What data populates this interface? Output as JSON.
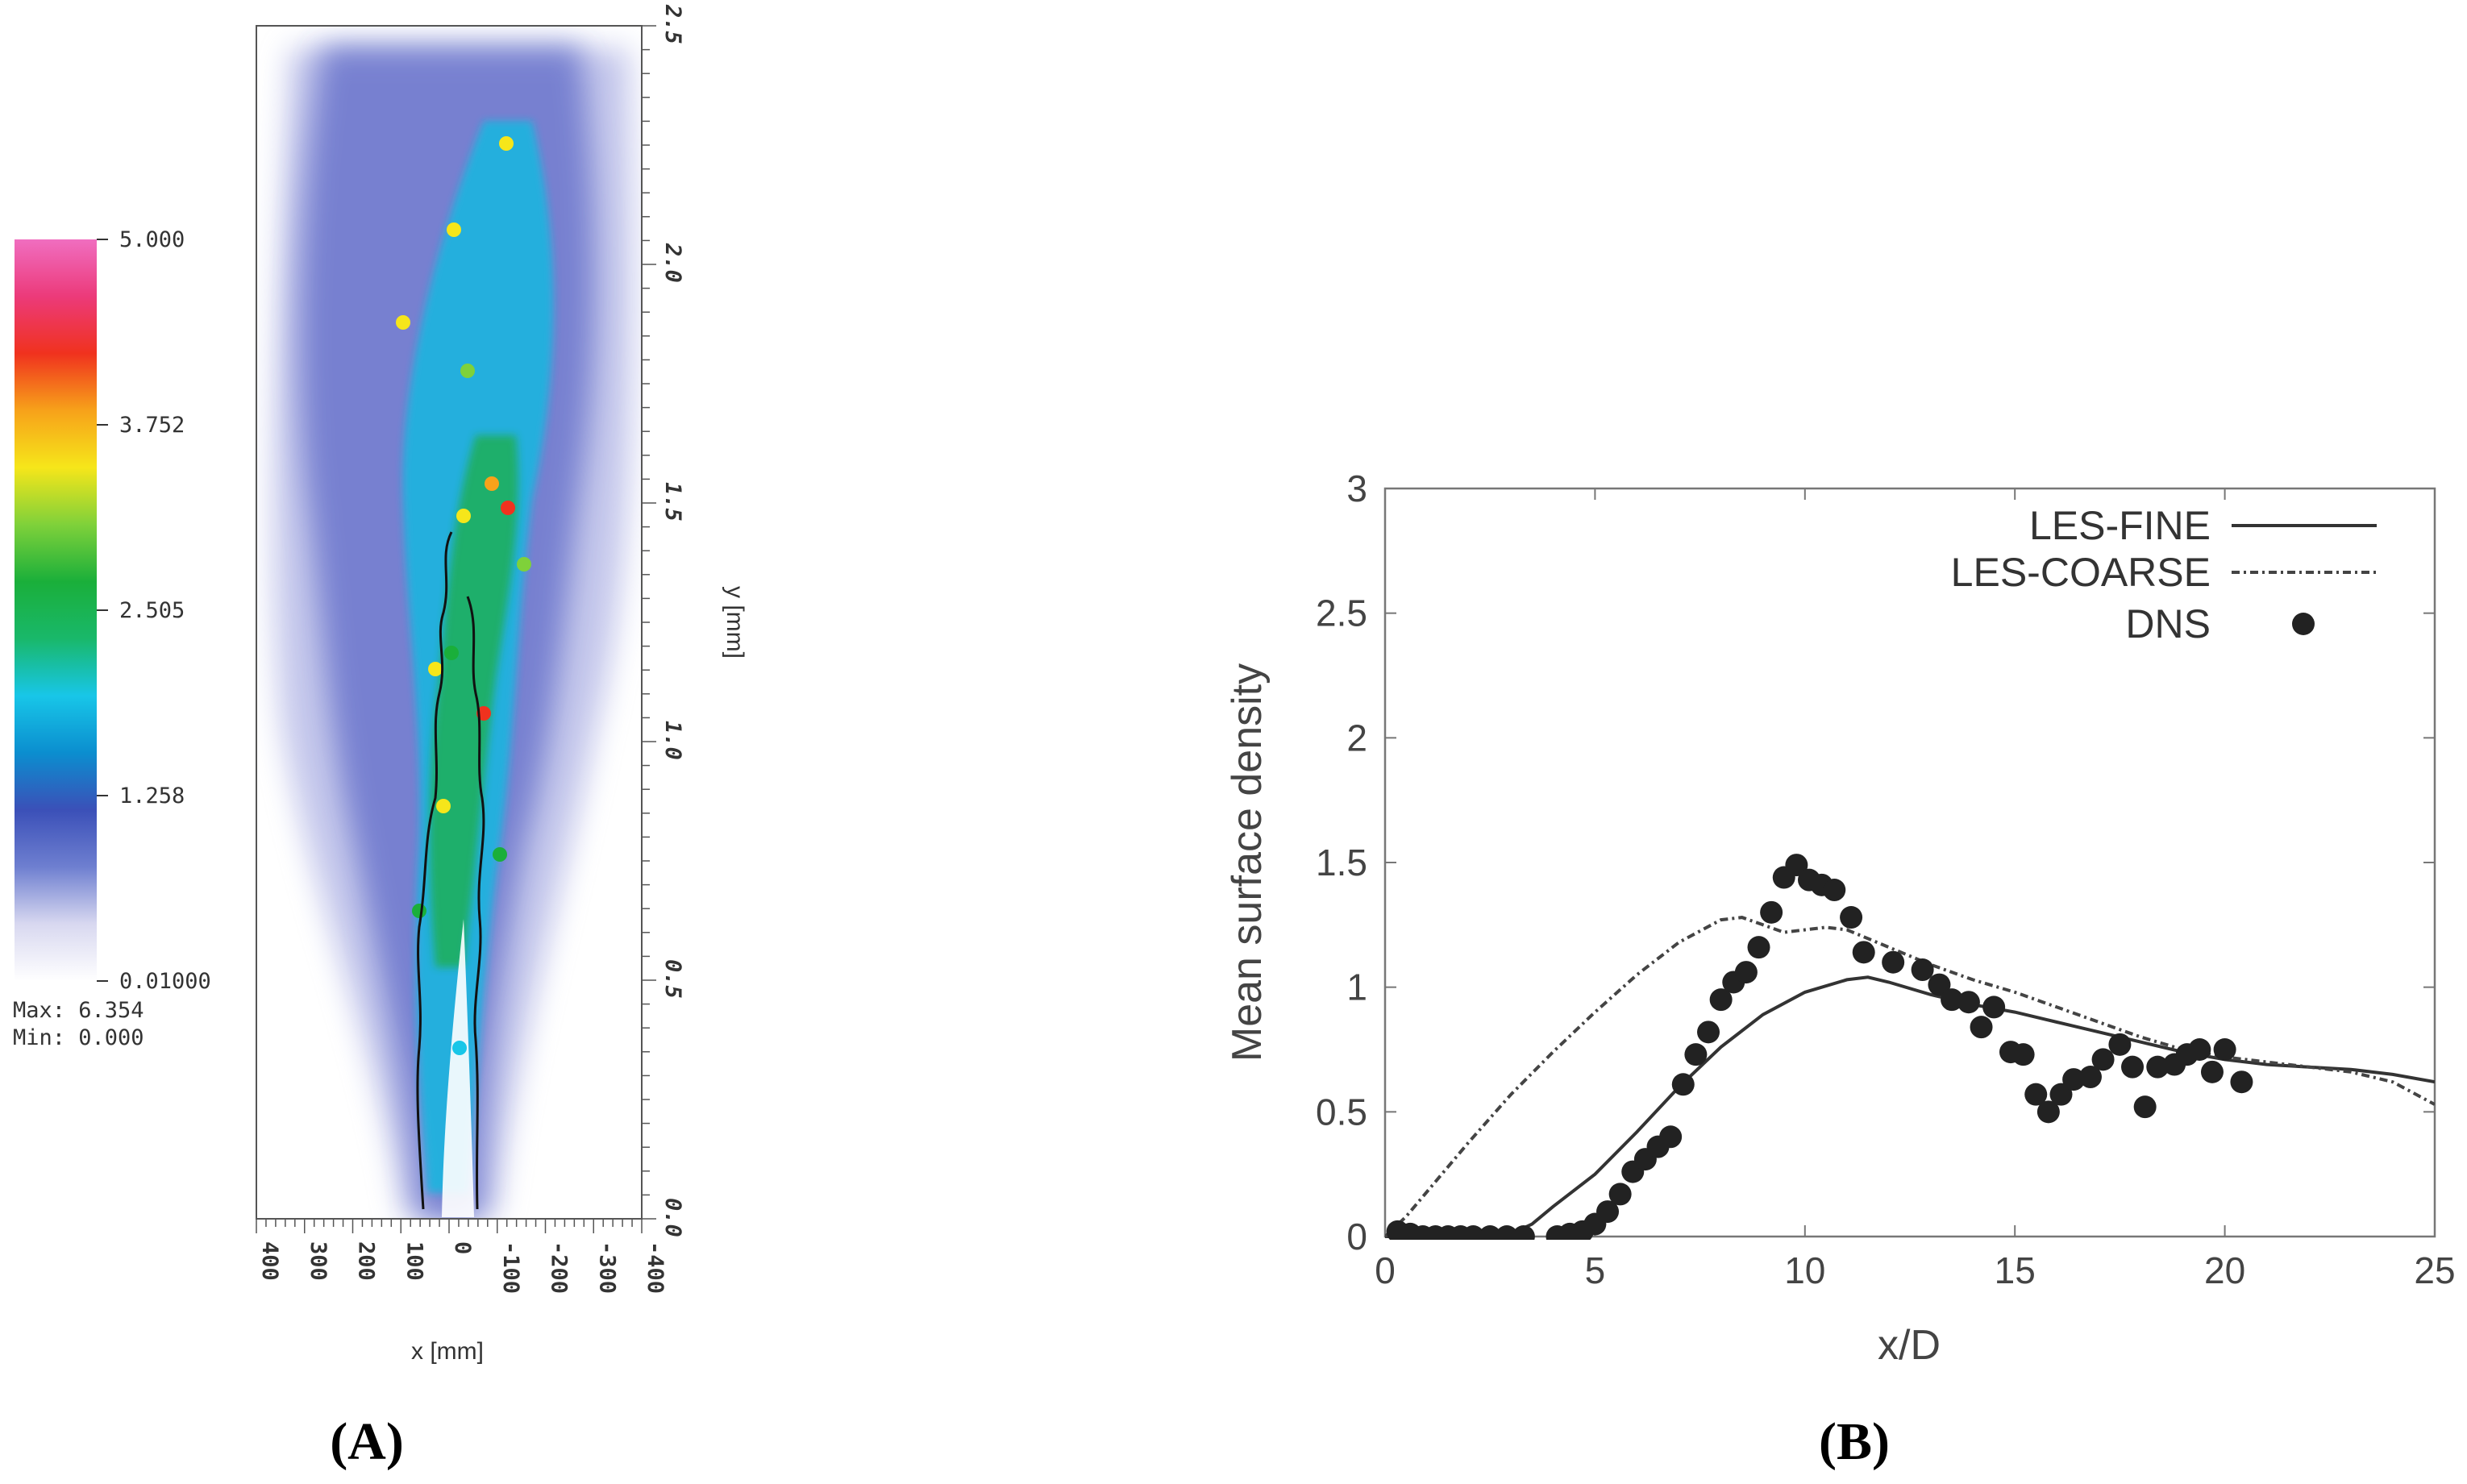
{
  "colormap": {
    "ticks": [
      "5.000",
      "3.752",
      "2.505",
      "1.258",
      "0.01000"
    ],
    "max_label": "Max: 6.354",
    "min_label": "Min: 0.000",
    "stops": [
      "#ffffff",
      "#d8d8f0",
      "#6e7fd0",
      "#3b50b8",
      "#0b8ecf",
      "#18c6e8",
      "#19b86a",
      "#1aaf3a",
      "#7fd13a",
      "#f6e61a",
      "#f7a21a",
      "#f0321e",
      "#ec3a7a",
      "#f06ec0"
    ]
  },
  "chart_data": [
    {
      "type": "heatmap",
      "panel_label": "(A)",
      "xlabel": "x [mm]",
      "ylabel": "y [mm]",
      "x_ticks": [
        "400",
        "300",
        "200",
        "100",
        "0",
        "-100",
        "-200",
        "-300",
        "-400"
      ],
      "y_ticks": [
        "0.0",
        "0.5",
        "1.0",
        "1.5",
        "2.0",
        "2.5"
      ],
      "xlim": [
        400,
        -400
      ],
      "ylim": [
        0,
        2.5
      ],
      "colorbar_range": [
        0.01,
        5.0
      ]
    },
    {
      "type": "line",
      "panel_label": "(B)",
      "xlabel": "x/D",
      "ylabel": "Mean surface density",
      "xlim": [
        0,
        25
      ],
      "ylim": [
        0,
        3
      ],
      "x_ticks": [
        "0",
        "5",
        "10",
        "15",
        "20",
        "25"
      ],
      "y_ticks": [
        "0",
        "0.5",
        "1",
        "1.5",
        "2",
        "2.5",
        "3"
      ],
      "legend_position": "top-right",
      "series": [
        {
          "name": "LES-FINE",
          "style": "solid",
          "x": [
            0,
            1,
            2,
            3,
            3.5,
            4,
            5,
            6,
            7,
            8,
            9,
            10,
            11,
            11.5,
            12,
            13,
            14,
            15,
            16,
            17,
            18,
            19,
            20,
            21,
            22,
            23,
            24,
            25
          ],
          "y": [
            0.0,
            0.0,
            0.0,
            0.01,
            0.05,
            0.12,
            0.25,
            0.42,
            0.6,
            0.76,
            0.89,
            0.98,
            1.03,
            1.04,
            1.02,
            0.97,
            0.93,
            0.9,
            0.86,
            0.82,
            0.78,
            0.74,
            0.71,
            0.69,
            0.68,
            0.67,
            0.65,
            0.62
          ]
        },
        {
          "name": "LES-COARSE",
          "style": "dash-dot",
          "x": [
            0,
            0.5,
            1,
            2,
            3,
            4,
            5,
            6,
            7,
            8,
            8.5,
            9,
            9.5,
            10,
            10.5,
            11,
            12,
            13,
            14,
            15,
            16,
            17,
            18,
            19,
            20,
            21,
            22,
            23,
            24,
            25
          ],
          "y": [
            0.0,
            0.08,
            0.18,
            0.38,
            0.57,
            0.74,
            0.9,
            1.05,
            1.18,
            1.27,
            1.28,
            1.25,
            1.22,
            1.23,
            1.24,
            1.23,
            1.16,
            1.09,
            1.03,
            0.98,
            0.92,
            0.86,
            0.8,
            0.75,
            0.72,
            0.7,
            0.68,
            0.66,
            0.62,
            0.53
          ]
        },
        {
          "name": "DNS",
          "style": "markers",
          "x": [
            0.3,
            0.6,
            0.9,
            1.2,
            1.5,
            1.8,
            2.1,
            2.5,
            2.9,
            3.3,
            4.1,
            4.4,
            4.7,
            5.0,
            5.3,
            5.6,
            5.9,
            6.2,
            6.5,
            6.8,
            7.1,
            7.4,
            7.7,
            8.0,
            8.3,
            8.6,
            8.9,
            9.2,
            9.5,
            9.8,
            10.1,
            10.4,
            10.7,
            11.1,
            11.4,
            12.1,
            12.8,
            13.2,
            13.5,
            13.9,
            14.2,
            14.5,
            14.9,
            15.2,
            15.5,
            15.8,
            16.1,
            16.4,
            16.8,
            17.1,
            17.5,
            17.8,
            18.1,
            18.4,
            18.8,
            19.1,
            19.4,
            19.7,
            20.0,
            20.4
          ],
          "y": [
            0.02,
            0.01,
            0.0,
            0.0,
            0.0,
            0.0,
            0.0,
            0.0,
            0.0,
            0.0,
            0.0,
            0.01,
            0.02,
            0.05,
            0.1,
            0.17,
            0.26,
            0.31,
            0.36,
            0.4,
            0.61,
            0.73,
            0.82,
            0.95,
            1.02,
            1.06,
            1.16,
            1.3,
            1.44,
            1.49,
            1.43,
            1.41,
            1.39,
            1.28,
            1.14,
            1.1,
            1.07,
            1.01,
            0.95,
            0.94,
            0.84,
            0.92,
            0.74,
            0.73,
            0.57,
            0.5,
            0.57,
            0.63,
            0.64,
            0.71,
            0.77,
            0.68,
            0.52,
            0.68,
            0.69,
            0.73,
            0.75,
            0.66,
            0.75,
            0.62
          ]
        }
      ]
    }
  ]
}
